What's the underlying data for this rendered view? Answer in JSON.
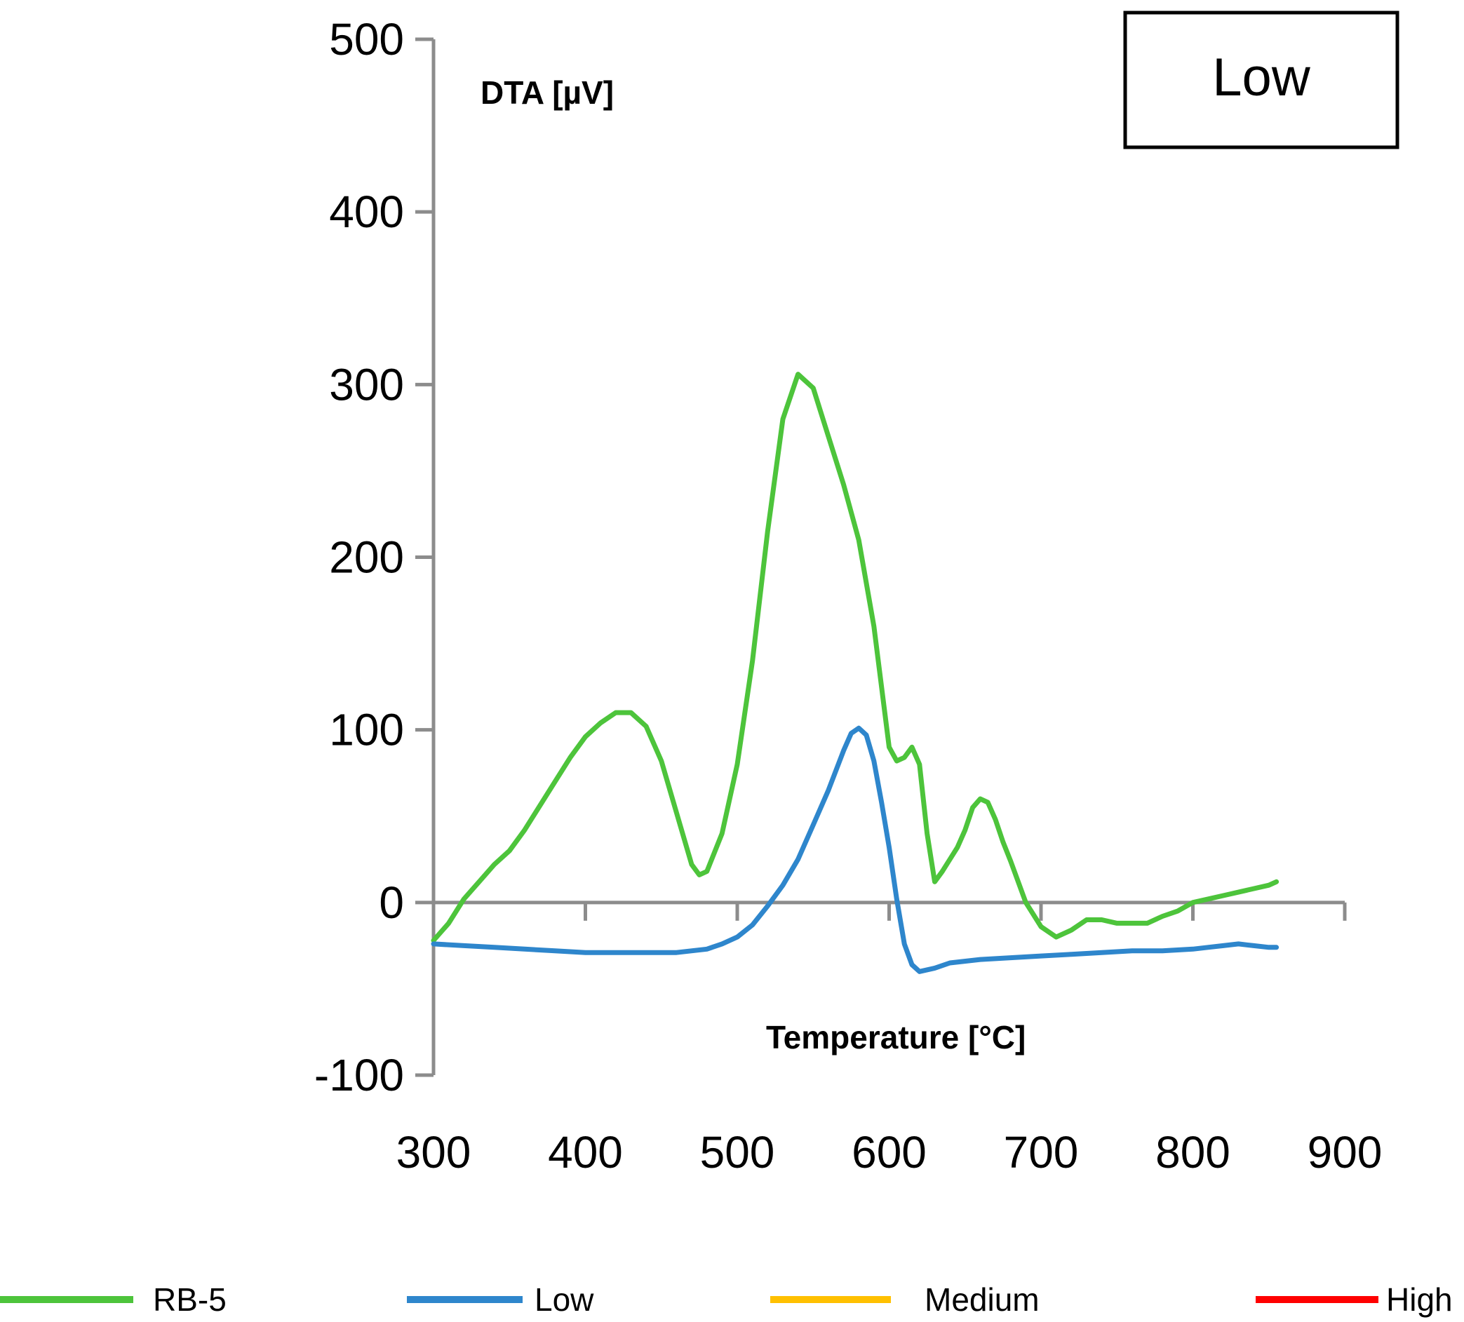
{
  "panel_label": "Low",
  "chart_data": {
    "type": "line",
    "title": "",
    "xlabel": "Temperature [°C]",
    "ylabel": "DTA [µV]",
    "xlim": [
      300,
      900
    ],
    "ylim": [
      -100,
      500
    ],
    "xticks": [
      300,
      400,
      500,
      600,
      700,
      800,
      900
    ],
    "yticks": [
      -100,
      0,
      100,
      200,
      300,
      400,
      500
    ],
    "grid": false,
    "legend_position": "bottom",
    "series": [
      {
        "name": "RB-5",
        "color": "#4DC43B",
        "x": [
          300,
          310,
          320,
          330,
          340,
          350,
          360,
          370,
          380,
          390,
          400,
          410,
          420,
          430,
          440,
          450,
          460,
          470,
          475,
          480,
          490,
          500,
          510,
          520,
          530,
          540,
          550,
          560,
          570,
          580,
          590,
          600,
          605,
          610,
          615,
          620,
          625,
          630,
          635,
          640,
          645,
          650,
          655,
          660,
          665,
          670,
          675,
          680,
          690,
          700,
          710,
          720,
          730,
          740,
          750,
          760,
          770,
          780,
          790,
          800,
          810,
          820,
          830,
          840,
          850,
          855
        ],
        "y": [
          -22,
          -12,
          2,
          12,
          22,
          30,
          42,
          56,
          70,
          84,
          96,
          104,
          110,
          110,
          102,
          82,
          52,
          22,
          16,
          18,
          40,
          80,
          140,
          215,
          280,
          306,
          298,
          270,
          242,
          210,
          160,
          90,
          82,
          84,
          90,
          80,
          40,
          12,
          18,
          25,
          32,
          42,
          55,
          60,
          58,
          48,
          35,
          24,
          0,
          -14,
          -20,
          -16,
          -10,
          -10,
          -12,
          -12,
          -12,
          -8,
          -5,
          0,
          2,
          4,
          6,
          8,
          10,
          12
        ]
      },
      {
        "name": "Low",
        "color": "#2E86CC",
        "x": [
          300,
          320,
          340,
          360,
          380,
          400,
          420,
          440,
          460,
          480,
          490,
          500,
          510,
          520,
          530,
          540,
          550,
          560,
          570,
          575,
          580,
          585,
          590,
          595,
          600,
          605,
          610,
          615,
          620,
          630,
          640,
          660,
          680,
          700,
          720,
          740,
          760,
          780,
          800,
          810,
          820,
          830,
          840,
          850,
          855
        ],
        "y": [
          -24,
          -25,
          -26,
          -27,
          -28,
          -29,
          -29,
          -29,
          -29,
          -27,
          -24,
          -20,
          -13,
          -2,
          10,
          25,
          45,
          65,
          88,
          98,
          101,
          97,
          82,
          58,
          32,
          2,
          -24,
          -36,
          -40,
          -38,
          -35,
          -33,
          -32,
          -31,
          -30,
          -29,
          -28,
          -28,
          -27,
          -26,
          -25,
          -24,
          -25,
          -26,
          -26
        ]
      },
      {
        "name": "Medium",
        "color": "#FFC000",
        "x": [],
        "y": []
      },
      {
        "name": "High",
        "color": "#FF0000",
        "x": [],
        "y": []
      }
    ]
  }
}
